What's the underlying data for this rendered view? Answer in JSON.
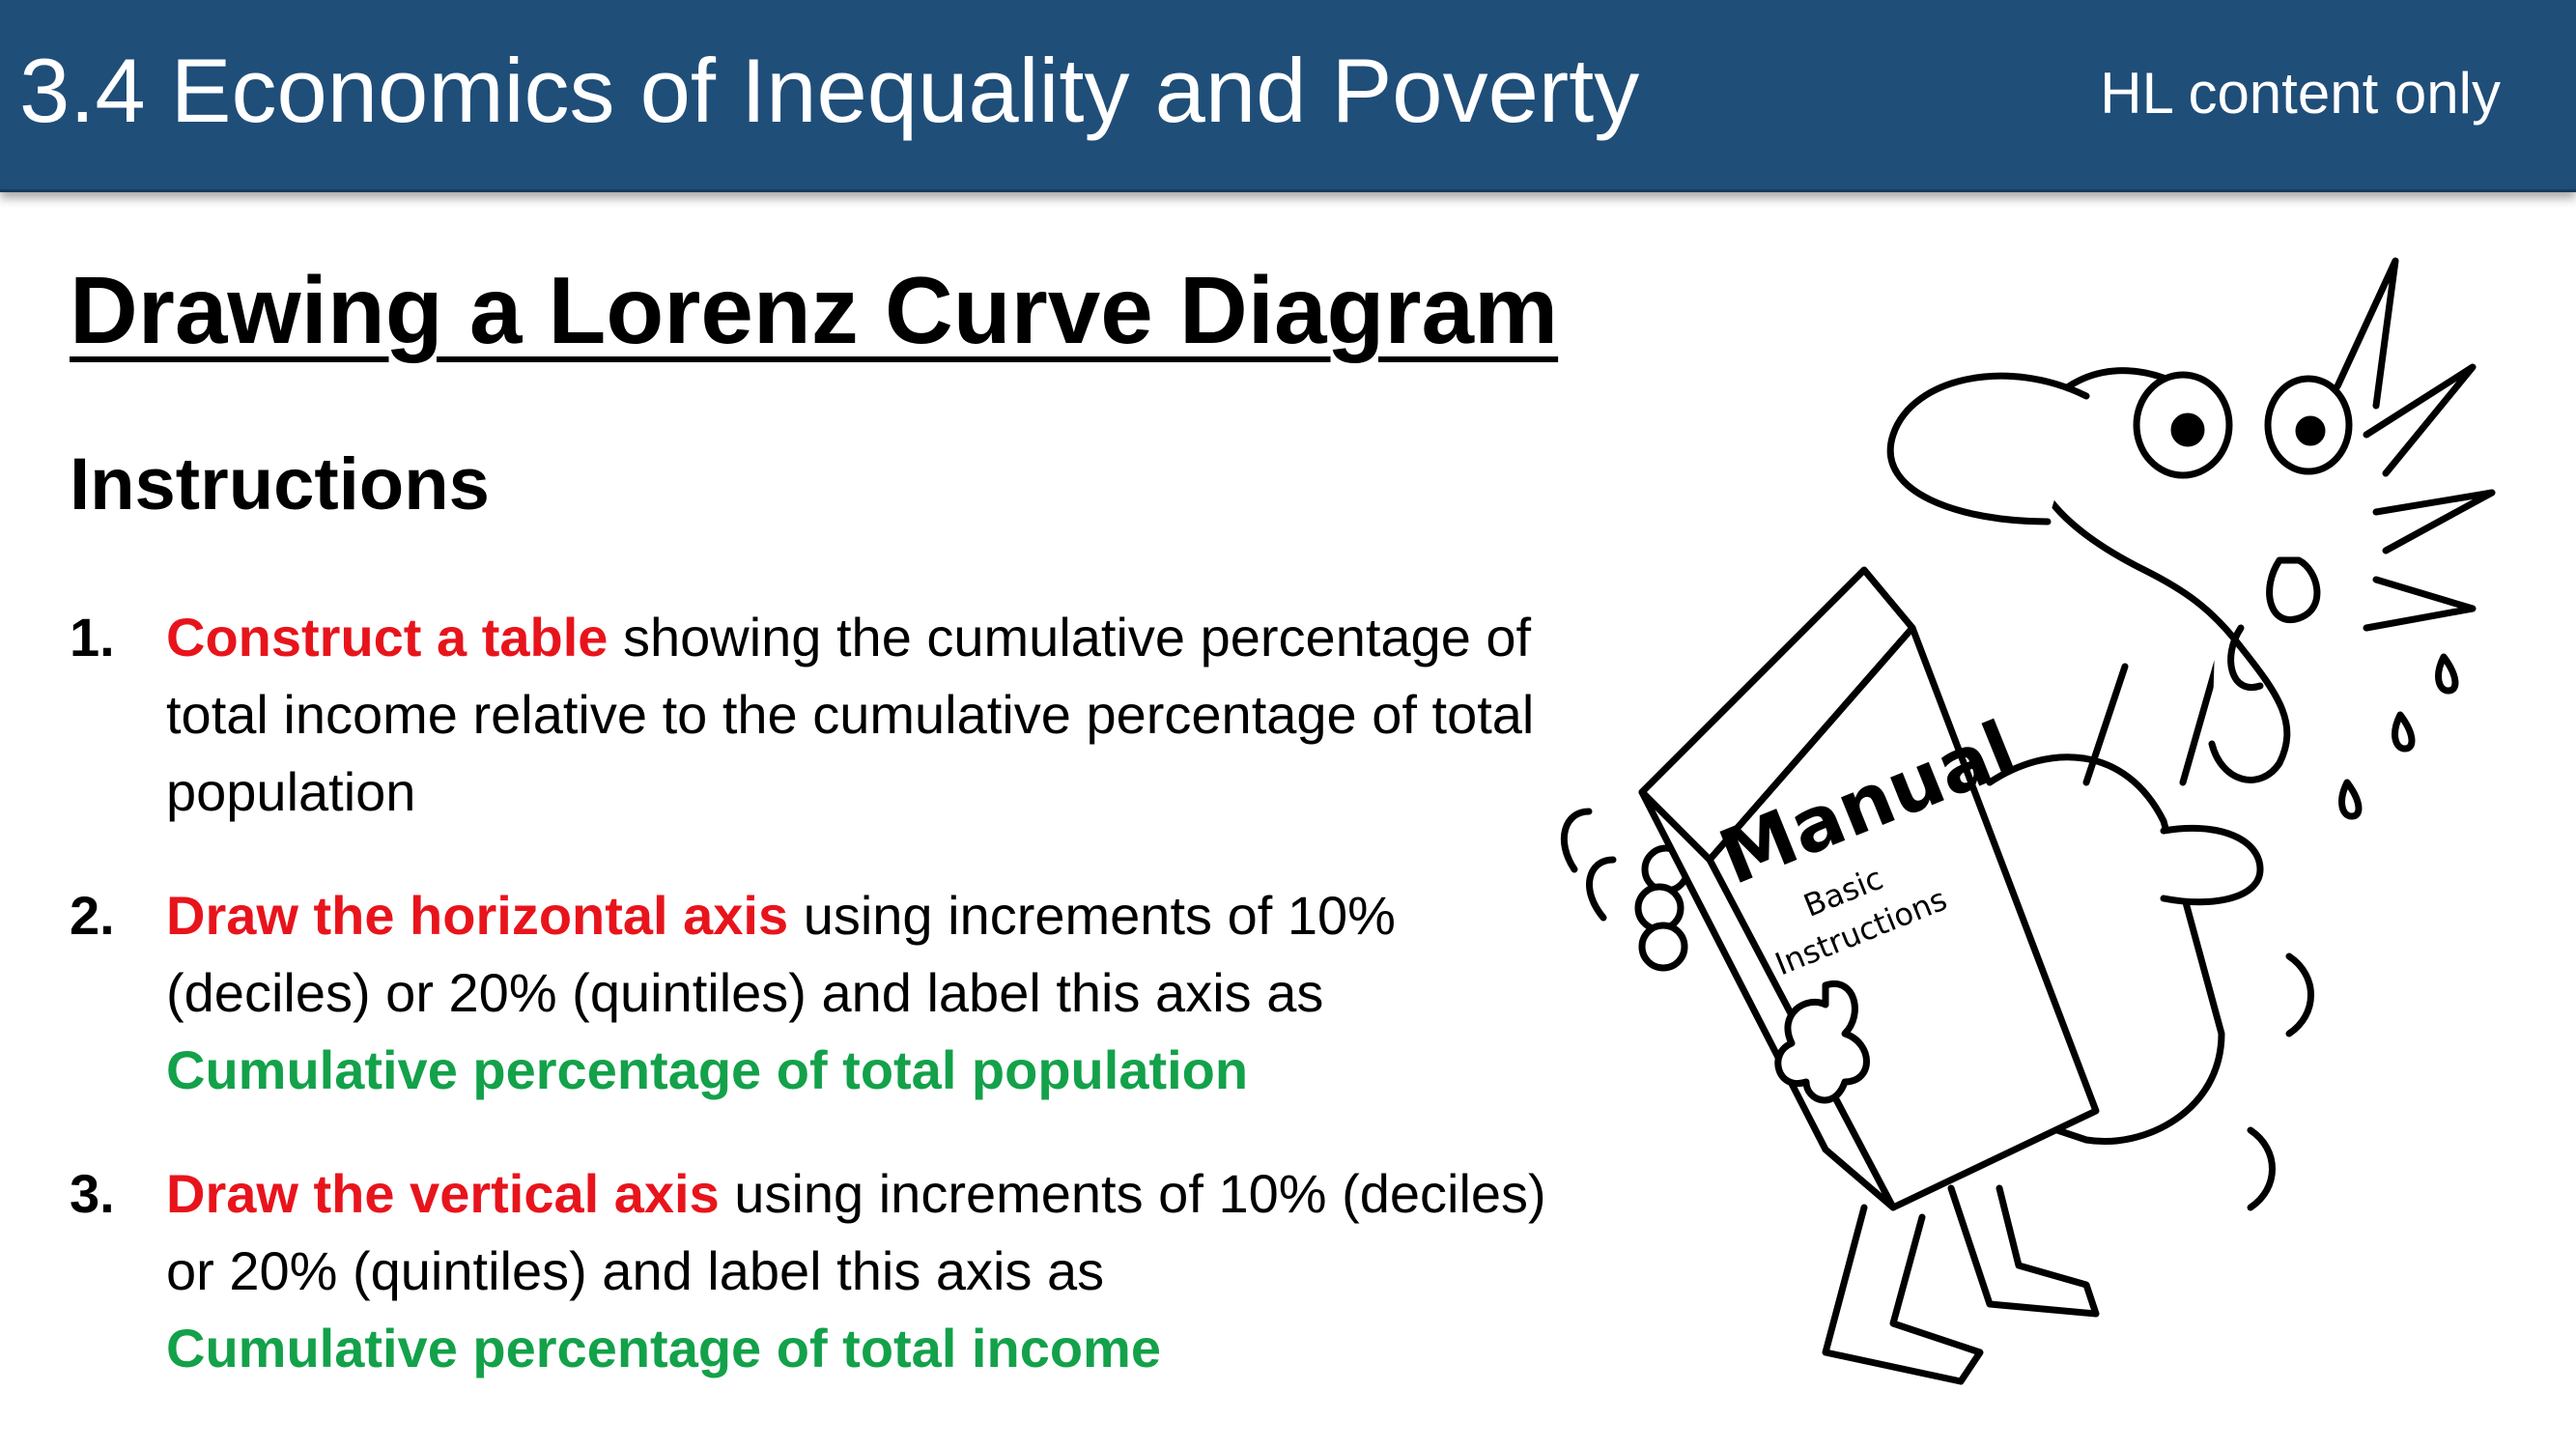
{
  "header": {
    "title": "3.4 Economics of Inequality and Poverty",
    "badge": "HL content only",
    "background_color": "#1f4e79"
  },
  "slide": {
    "title": "Drawing a Lorenz Curve Diagram",
    "subheading": "Instructions"
  },
  "steps": [
    {
      "number": "1.",
      "highlight": "Construct a table",
      "text": " showing the cumulative percentage of total income relative to the cumulative percentage of total population",
      "label": ""
    },
    {
      "number": "2.",
      "highlight": "Draw the horizontal axis",
      "text": " using increments of 10% (deciles) or 20% (quintiles) and label this axis as",
      "label": "Cumulative percentage of total population"
    },
    {
      "number": "3.",
      "highlight": "Draw the vertical axis",
      "text": " using increments of 10% (deciles) or 20% (quintiles) and label this axis as",
      "label": "Cumulative percentage of total income"
    }
  ],
  "illustration": {
    "book_title": "Manual",
    "book_subtitle_1": "Basic",
    "book_subtitle_2": "Instructions"
  },
  "colors": {
    "highlight_red": "#e8141c",
    "label_green": "#13a14a"
  }
}
